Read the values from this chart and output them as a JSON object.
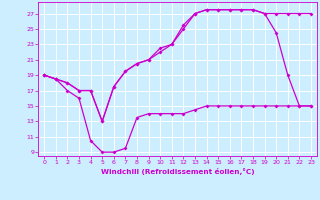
{
  "xlabel": "Windchill (Refroidissement éolien,°C)",
  "xlim": [
    -0.5,
    23.5
  ],
  "ylim": [
    8.5,
    28.5
  ],
  "yticks": [
    9,
    11,
    13,
    15,
    17,
    19,
    21,
    23,
    25,
    27
  ],
  "xticks": [
    0,
    1,
    2,
    3,
    4,
    5,
    6,
    7,
    8,
    9,
    10,
    11,
    12,
    13,
    14,
    15,
    16,
    17,
    18,
    19,
    20,
    21,
    22,
    23
  ],
  "bg_color": "#cceeff",
  "line_color": "#cc00cc",
  "grid_color": "#ffffff",
  "line1_x": [
    0,
    1,
    2,
    3,
    4,
    5,
    6,
    7,
    8,
    9,
    10,
    11,
    12,
    13,
    14,
    15,
    16,
    17,
    18,
    19,
    20,
    21,
    22,
    23
  ],
  "line1_y": [
    19,
    18.5,
    17,
    16,
    10.5,
    9,
    9,
    9.5,
    13.5,
    14,
    14,
    14,
    14,
    14.5,
    15,
    15,
    15,
    15,
    15,
    15,
    15,
    15,
    15,
    15
  ],
  "line2_x": [
    0,
    1,
    2,
    3,
    4,
    5,
    6,
    7,
    8,
    9,
    10,
    11,
    12,
    13,
    14,
    15,
    16,
    17,
    18,
    19,
    20,
    21,
    22,
    23
  ],
  "line2_y": [
    19,
    18.5,
    18,
    17,
    17,
    13,
    17.5,
    19.5,
    20.5,
    21,
    22.5,
    23,
    25.5,
    27,
    27.5,
    27.5,
    27.5,
    27.5,
    27.5,
    27,
    24.5,
    19,
    15,
    15
  ],
  "line3_x": [
    0,
    1,
    2,
    3,
    4,
    5,
    6,
    7,
    8,
    9,
    10,
    11,
    12,
    13,
    14,
    15,
    16,
    17,
    18,
    19,
    20,
    21,
    22,
    23
  ],
  "line3_y": [
    19,
    18.5,
    18,
    17,
    17,
    13,
    17.5,
    19.5,
    20.5,
    21,
    22,
    23,
    25,
    27,
    27.5,
    27.5,
    27.5,
    27.5,
    27.5,
    27,
    27,
    27,
    27,
    27
  ]
}
